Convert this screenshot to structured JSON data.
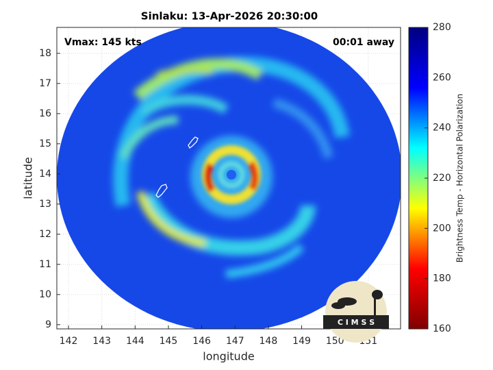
{
  "chart_data": {
    "type": "image",
    "title": "Sinlaku: 13-Apr-2026 20:30:00",
    "annotations": [
      "Vmax: 145 kts",
      "00:01 away"
    ],
    "x_label": "longitude",
    "y_label": "latitude",
    "xlim": [
      141.65,
      151.97
    ],
    "xticks": [
      142,
      143,
      144,
      145,
      146,
      147,
      148,
      149,
      150,
      151
    ],
    "ylim": [
      8.86,
      18.86
    ],
    "yticks": [
      9,
      10,
      11,
      12,
      13,
      14,
      15,
      16,
      17,
      18
    ],
    "grid": true,
    "colorbar": {
      "label": "Brightness Temp - Horizontal Polarization",
      "lim": [
        160,
        280
      ],
      "ticks": [
        160,
        180,
        200,
        220,
        240,
        260,
        280
      ],
      "colormap": "jet",
      "colors": [
        "#800000",
        "#ff0000",
        "#ffff00",
        "#00ffff",
        "#0000ff",
        "#000080"
      ]
    },
    "logo_text": "C I M S S"
  }
}
